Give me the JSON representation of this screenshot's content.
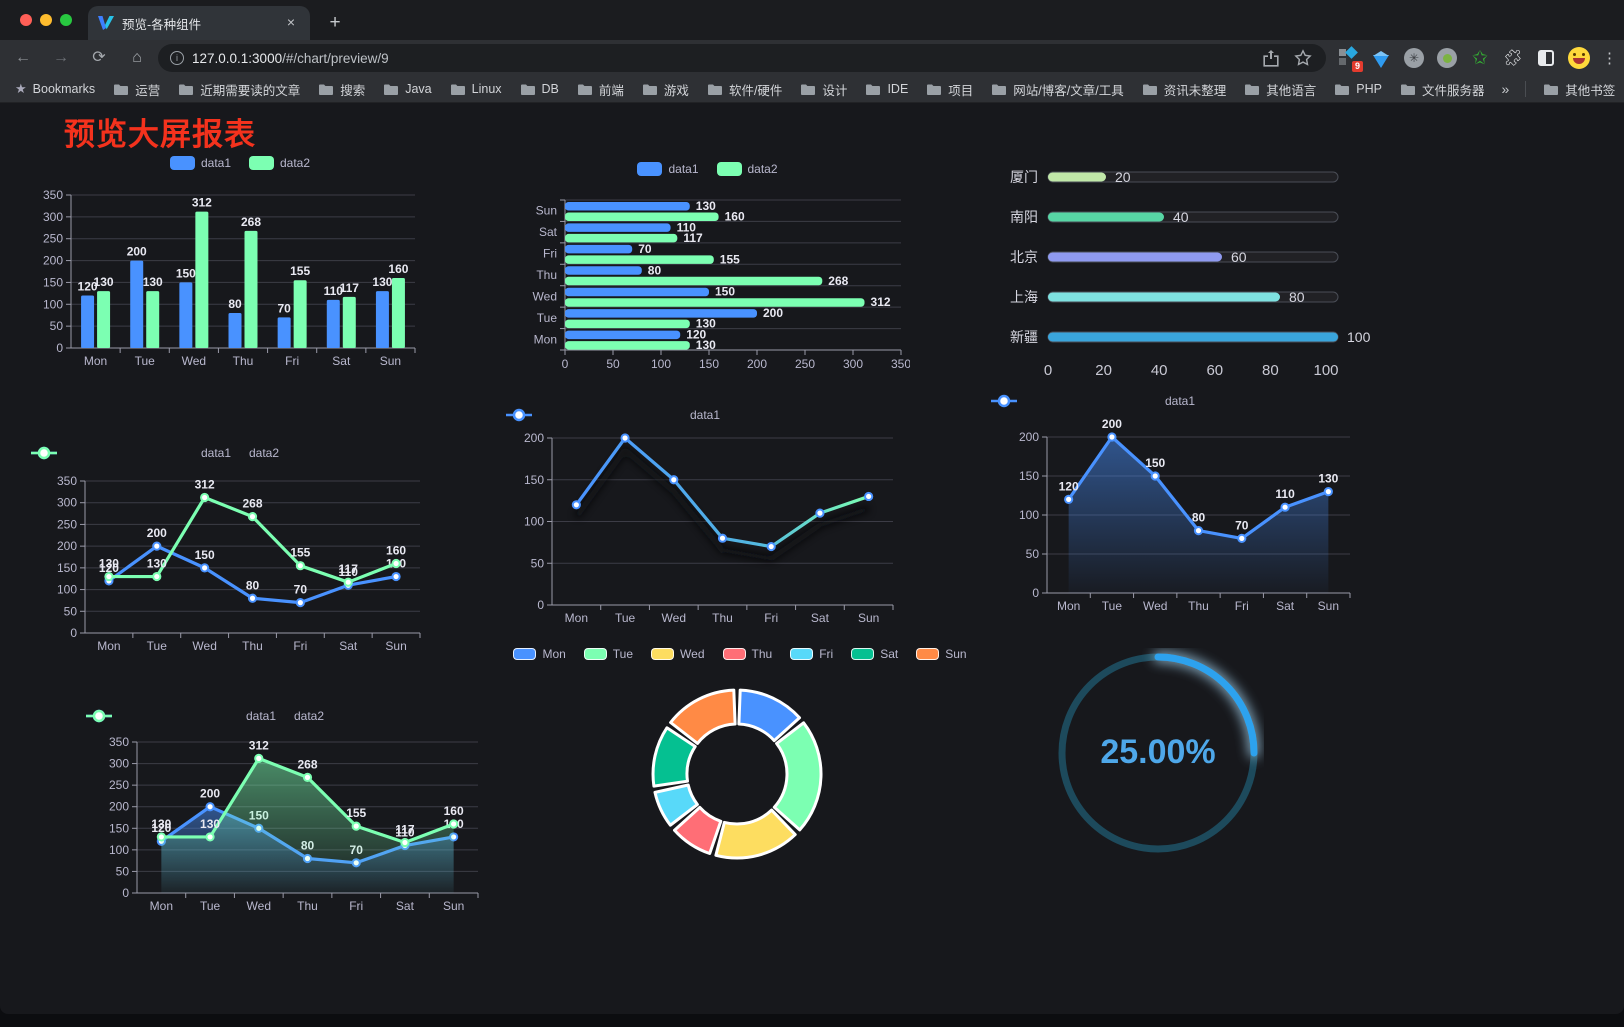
{
  "browser": {
    "tab_title": "预览-各种组件",
    "close_tab": "×",
    "new_tab": "+",
    "url_host": "127.0.0.1:3000",
    "url_path": "/#/chart/preview/9",
    "extension_badge": "9",
    "menu_dots": "⋮",
    "bookmarks_label": "Bookmarks",
    "bookmarks": [
      "运营",
      "近期需要读的文章",
      "搜索",
      "Java",
      "Linux",
      "DB",
      "前端",
      "游戏",
      "软件/硬件",
      "设计",
      "IDE",
      "项目",
      "网站/博客/文章/工具",
      "资讯未整理",
      "其他语言",
      "PHP",
      "文件服务器"
    ],
    "bookmarks_overflow": "»",
    "other_bookmarks": "其他书签"
  },
  "page": {
    "title": "预览大屏报表"
  },
  "chart_data": [
    {
      "id": "grouped-bar",
      "type": "bar",
      "categories": [
        "Mon",
        "Tue",
        "Wed",
        "Thu",
        "Fri",
        "Sat",
        "Sun"
      ],
      "series": [
        {
          "name": "data1",
          "color": "#4992ff",
          "values": [
            120,
            200,
            150,
            80,
            70,
            110,
            130
          ]
        },
        {
          "name": "data2",
          "color": "#7cffb2",
          "values": [
            130,
            130,
            312,
            268,
            155,
            117,
            160
          ]
        }
      ],
      "ylim": [
        0,
        350
      ],
      "yticks": [
        0,
        50,
        100,
        150,
        200,
        250,
        300,
        350
      ],
      "legend_position": "top",
      "grid": true,
      "value_labels": true
    },
    {
      "id": "grouped-bar-horizontal",
      "type": "bar-horizontal",
      "categories": [
        "Mon",
        "Tue",
        "Wed",
        "Thu",
        "Fri",
        "Sat",
        "Sun"
      ],
      "series": [
        {
          "name": "data1",
          "color": "#4992ff",
          "values": [
            120,
            200,
            150,
            80,
            70,
            110,
            130
          ]
        },
        {
          "name": "data2",
          "color": "#7cffb2",
          "values": [
            130,
            130,
            312,
            268,
            155,
            117,
            160
          ]
        }
      ],
      "xlim": [
        0,
        350
      ],
      "xticks": [
        0,
        50,
        100,
        150,
        200,
        250,
        300,
        350
      ],
      "legend_position": "top",
      "value_labels": true
    },
    {
      "id": "city-progress",
      "type": "progress-bar",
      "categories": [
        "厦门",
        "南阳",
        "北京",
        "上海",
        "新疆"
      ],
      "values": [
        20,
        40,
        60,
        80,
        100
      ],
      "colors": [
        "#c0e7a8",
        "#57d6a5",
        "#8f9af0",
        "#7ee1e0",
        "#3aa5dc"
      ],
      "xlim": [
        0,
        100
      ],
      "xticks": [
        0,
        20,
        40,
        60,
        80,
        100
      ]
    },
    {
      "id": "line-basic",
      "type": "line",
      "categories": [
        "Mon",
        "Tue",
        "Wed",
        "Thu",
        "Fri",
        "Sat",
        "Sun"
      ],
      "series": [
        {
          "name": "data1",
          "color": "#4992ff",
          "values": [
            120,
            200,
            150,
            80,
            70,
            110,
            130
          ]
        },
        {
          "name": "data2",
          "color": "#7cffb2",
          "values": [
            130,
            130,
            312,
            268,
            155,
            117,
            160
          ]
        }
      ],
      "ylim": [
        0,
        350
      ],
      "yticks": [
        0,
        50,
        100,
        150,
        200,
        250,
        300,
        350
      ],
      "legend_position": "top",
      "value_labels": true
    },
    {
      "id": "line-gradient",
      "type": "line",
      "categories": [
        "Mon",
        "Tue",
        "Wed",
        "Thu",
        "Fri",
        "Sat",
        "Sun"
      ],
      "series": [
        {
          "name": "data1",
          "color": "#4992ff",
          "color_end": "#7cffb2",
          "gradient": true,
          "shadow": true,
          "values": [
            120,
            200,
            150,
            80,
            70,
            110,
            130
          ]
        }
      ],
      "ylim": [
        0,
        200
      ],
      "yticks": [
        0,
        50,
        100,
        150,
        200
      ],
      "legend_position": "top",
      "value_labels": false
    },
    {
      "id": "line-area-blue",
      "type": "line",
      "categories": [
        "Mon",
        "Tue",
        "Wed",
        "Thu",
        "Fri",
        "Sat",
        "Sun"
      ],
      "series": [
        {
          "name": "data1",
          "color": "#4992ff",
          "area": true,
          "values": [
            120,
            200,
            150,
            80,
            70,
            110,
            130
          ]
        }
      ],
      "ylim": [
        0,
        200
      ],
      "yticks": [
        0,
        50,
        100,
        150,
        200
      ],
      "legend_position": "top",
      "value_labels": true
    },
    {
      "id": "line-area-double",
      "type": "line",
      "categories": [
        "Mon",
        "Tue",
        "Wed",
        "Thu",
        "Fri",
        "Sat",
        "Sun"
      ],
      "series": [
        {
          "name": "data1",
          "color": "#4992ff",
          "area": true,
          "values": [
            120,
            200,
            150,
            80,
            70,
            110,
            130
          ]
        },
        {
          "name": "data2",
          "color": "#7cffb2",
          "area": true,
          "values": [
            130,
            130,
            312,
            268,
            155,
            117,
            160
          ]
        }
      ],
      "ylim": [
        0,
        350
      ],
      "yticks": [
        0,
        50,
        100,
        150,
        200,
        250,
        300,
        350
      ],
      "legend_position": "top",
      "value_labels": true
    },
    {
      "id": "weekday-donut",
      "type": "pie",
      "categories": [
        "Mon",
        "Tue",
        "Wed",
        "Thu",
        "Fri",
        "Sat",
        "Sun"
      ],
      "values": [
        120,
        200,
        150,
        80,
        70,
        110,
        130
      ],
      "colors": [
        "#4992ff",
        "#7cffb2",
        "#fddd60",
        "#ff6e76",
        "#58d9f9",
        "#05c091",
        "#ff8a45"
      ],
      "legend_position": "top"
    },
    {
      "id": "percent-gauge",
      "type": "gauge",
      "value": 25,
      "label": "25.00%",
      "color": "#2da2ee",
      "track_color": "#1d4a5c"
    }
  ]
}
